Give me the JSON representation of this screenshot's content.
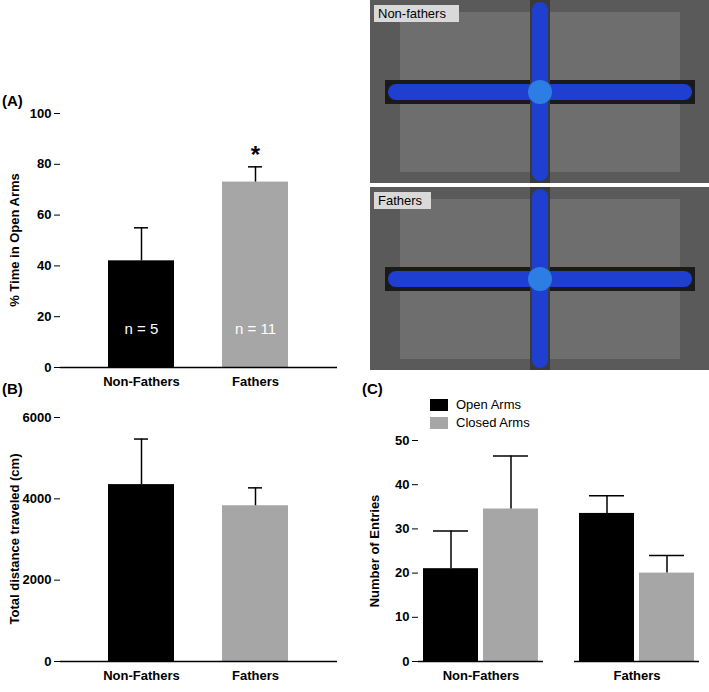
{
  "chart_data": [
    {
      "type": "bar",
      "title": "(A)",
      "categories": [
        "Non-Fathers",
        "Fathers"
      ],
      "values": [
        42,
        73
      ],
      "errors": [
        13,
        6
      ],
      "colors": [
        "#000000",
        "#a6a6a6"
      ],
      "y_label": "% Time in Open Arms",
      "ylim": [
        0,
        100
      ],
      "yticks": [
        0,
        20,
        40,
        60,
        80,
        100
      ],
      "bar_labels": [
        "n = 5",
        "n = 11"
      ],
      "significance": [
        null,
        "*"
      ]
    },
    {
      "type": "bar",
      "title": "(B)",
      "categories": [
        "Non-Fathers",
        "Fathers"
      ],
      "values": [
        4350,
        3830
      ],
      "errors": [
        1120,
        440
      ],
      "colors": [
        "#000000",
        "#a6a6a6"
      ],
      "y_label": "Total distance traveled (cm)",
      "ylim": [
        0,
        6000
      ],
      "yticks": [
        0,
        2000,
        4000,
        6000
      ]
    },
    {
      "type": "bar",
      "title": "(C)",
      "categories": [
        "Non-Fathers",
        "Fathers"
      ],
      "series": [
        {
          "name": "Open Arms",
          "color": "#000000",
          "values": [
            21,
            33.5
          ],
          "errors": [
            8.5,
            4
          ]
        },
        {
          "name": "Closed Arms",
          "color": "#a6a6a6",
          "values": [
            34.5,
            20
          ],
          "errors": [
            12,
            4
          ]
        }
      ],
      "y_label": "Number of Entries",
      "ylim": [
        0,
        50
      ],
      "yticks": [
        0,
        10,
        20,
        30,
        40,
        50
      ],
      "legend": "top-left"
    }
  ],
  "heatmaps": [
    {
      "label": "Non-fathers"
    },
    {
      "label": "Fathers"
    }
  ]
}
